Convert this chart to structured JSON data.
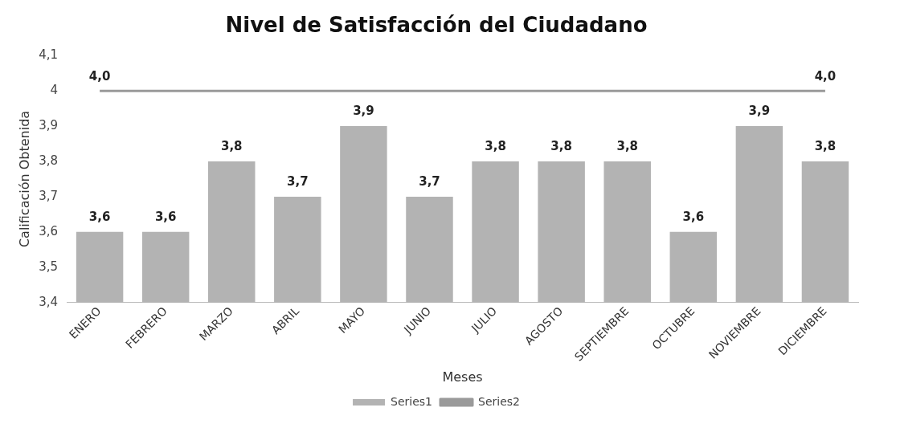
{
  "chart_data": {
    "type": "bar",
    "title": "Nivel de Satisfacción del Ciudadano",
    "xlabel": "Meses",
    "ylabel": "Calificación Obtenida",
    "categories": [
      "ENERO",
      "FEBRERO",
      "MARZO",
      "ABRIL",
      "MAYO",
      "JUNIO",
      "JULIO",
      "AGOSTO",
      "SEPTIEMBRE",
      "OCTUBRE",
      "NOVIEMBRE",
      "DICIEMBRE"
    ],
    "series": [
      {
        "name": "Series1",
        "color": "#b3b3b3",
        "values": [
          3.6,
          3.6,
          3.8,
          3.7,
          3.9,
          3.7,
          3.8,
          3.8,
          3.8,
          3.6,
          3.9,
          3.8
        ],
        "value_labels": [
          "3,6",
          "3,6",
          "3,8",
          "3,7",
          "3,9",
          "3,7",
          "3,8",
          "3,8",
          "3,8",
          "3,6",
          "3,9",
          "3,8"
        ]
      },
      {
        "name": "Series2",
        "type": "line",
        "color": "#9a9a9a",
        "values": [
          4.0,
          4.0,
          4.0,
          4.0,
          4.0,
          4.0,
          4.0,
          4.0,
          4.0,
          4.0,
          4.0,
          4.0
        ],
        "value_labels": [
          "4,0",
          null,
          null,
          null,
          null,
          null,
          null,
          null,
          null,
          null,
          null,
          "4,0"
        ]
      }
    ],
    "ylim": [
      3.4,
      4.1
    ],
    "yticks": [
      {
        "value": 3.4,
        "label": "3,4"
      },
      {
        "value": 3.5,
        "label": "3,5"
      },
      {
        "value": 3.6,
        "label": "3,6"
      },
      {
        "value": 3.7,
        "label": "3,7"
      },
      {
        "value": 3.8,
        "label": "3,8"
      },
      {
        "value": 3.9,
        "label": "3,9"
      },
      4,
      {
        "value": 4.1,
        "label": "4,1"
      }
    ],
    "grid": false,
    "legend": "bottom",
    "marker": "none"
  }
}
